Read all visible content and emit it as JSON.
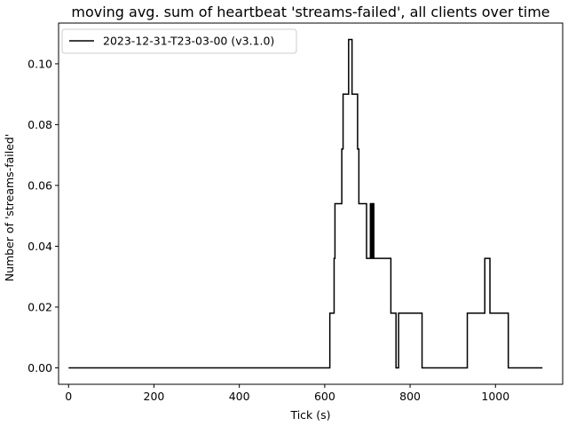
{
  "chart_data": {
    "type": "line",
    "title": "moving avg. sum of heartbeat 'streams-failed', all clients over time",
    "xlabel": "Tick (s)",
    "ylabel": "Number of 'streams-failed'",
    "xlim": [
      -23.4,
      1157.4
    ],
    "ylim": [
      -0.0054,
      0.1134
    ],
    "xticks": [
      0,
      200,
      400,
      600,
      800,
      1000
    ],
    "xtick_labels": [
      "0",
      "200",
      "400",
      "600",
      "800",
      "1000"
    ],
    "yticks": [
      0.0,
      0.02,
      0.04,
      0.06,
      0.08,
      0.1
    ],
    "ytick_labels": [
      "0.00",
      "0.02",
      "0.04",
      "0.06",
      "0.08",
      "0.10"
    ],
    "grid": false,
    "legend_position": "top-left",
    "series": [
      {
        "name": "2023-12-31-T23-03-00 (v3.1.0)",
        "color": "#000000",
        "x": [
          0,
          612,
          612,
          622,
          622,
          624,
          624,
          626,
          626,
          640,
          640,
          643,
          643,
          645,
          645,
          656,
          656,
          664,
          664,
          674,
          674,
          677,
          677,
          680,
          680,
          698,
          698,
          707,
          707,
          710,
          710,
          712,
          712,
          715,
          715,
          755,
          755,
          767,
          767,
          773,
          773,
          828,
          828,
          934,
          934,
          975,
          975,
          987,
          987,
          1030,
          1030,
          1110
        ],
        "y": [
          0,
          0,
          0.018,
          0.018,
          0.036,
          0.036,
          0.054,
          0.054,
          0.054,
          0.054,
          0.072,
          0.072,
          0.09,
          0.09,
          0.09,
          0.09,
          0.108,
          0.108,
          0.09,
          0.09,
          0.09,
          0.09,
          0.072,
          0.072,
          0.054,
          0.054,
          0.036,
          0.036,
          0.054,
          0.054,
          0.036,
          0.036,
          0.054,
          0.054,
          0.036,
          0.036,
          0.018,
          0.018,
          0,
          0,
          0.018,
          0.018,
          0,
          0,
          0.018,
          0.018,
          0.036,
          0.036,
          0.018,
          0.018,
          0,
          0
        ]
      }
    ]
  }
}
